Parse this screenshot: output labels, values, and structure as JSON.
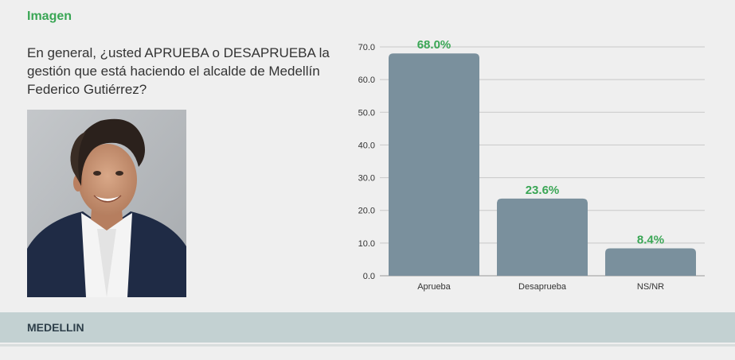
{
  "section": {
    "title": "Imagen"
  },
  "question": {
    "text": "En general, ¿usted APRUEBA o DESAPRUEBA la gestión que está haciendo el alcalde de Medellín Federico Gutiérrez?"
  },
  "footer": {
    "city": "MEDELLIN"
  },
  "colors": {
    "accent": "#3aa655",
    "bar": "#7a909d",
    "footer_bg": "#c3d1d2"
  },
  "chart_data": {
    "type": "bar",
    "categories": [
      "Aprueba",
      "Desaprueba",
      "NS/NR"
    ],
    "values": [
      68.0,
      23.6,
      8.4
    ],
    "data_labels": [
      "68.0%",
      "23.6%",
      "8.4%"
    ],
    "ylim": [
      0,
      70
    ],
    "yticks": [
      "0.0",
      "10.0",
      "20.0",
      "30.0",
      "40.0",
      "50.0",
      "60.0",
      "70.0"
    ],
    "grid": true,
    "legend": "none"
  }
}
